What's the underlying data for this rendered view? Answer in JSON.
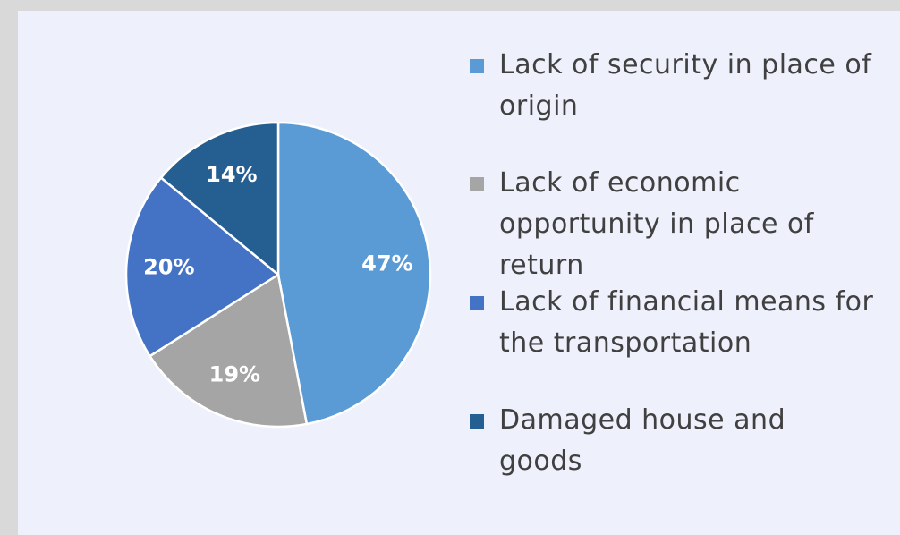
{
  "chart_data": {
    "type": "pie",
    "categories": [
      "Lack of security in place of origin",
      "Lack of economic opportunity in place of return",
      "Lack of financial means for the transportation",
      "Damaged house and goods"
    ],
    "values": [
      47,
      19,
      20,
      14
    ],
    "value_labels": [
      "47%",
      "19%",
      "20%",
      "14%"
    ],
    "colors": [
      "#5b9bd5",
      "#a5a5a5",
      "#4472c4",
      "#255e91"
    ],
    "legend": "right"
  }
}
